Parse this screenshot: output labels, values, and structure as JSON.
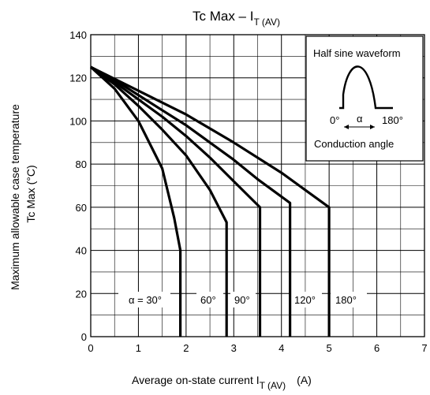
{
  "chart_data": {
    "type": "line",
    "title": {
      "main": "Tc Max – I",
      "sub": "T (AV)"
    },
    "xlabel": {
      "main": "Average on-state current   I",
      "sub": "T (AV)",
      "unit": "(A)"
    },
    "ylabel": {
      "line1": "Maximum allowable case temperature",
      "line2": "Tc Max     (°C)"
    },
    "xlim": [
      0,
      7
    ],
    "ylim": [
      0,
      140
    ],
    "x_ticks": [
      0,
      1,
      2,
      3,
      4,
      5,
      6,
      7
    ],
    "y_ticks": [
      0,
      20,
      40,
      60,
      80,
      100,
      120,
      140
    ],
    "grid": true,
    "series": [
      {
        "name": "α = 30°",
        "points": [
          [
            0,
            125
          ],
          [
            0.5,
            115
          ],
          [
            1.0,
            100
          ],
          [
            1.5,
            78
          ],
          [
            1.75,
            55
          ],
          [
            1.88,
            40
          ],
          [
            1.88,
            0
          ]
        ]
      },
      {
        "name": "60°",
        "points": [
          [
            0,
            125
          ],
          [
            0.5,
            117
          ],
          [
            1.0,
            107
          ],
          [
            1.5,
            96
          ],
          [
            2.0,
            84
          ],
          [
            2.5,
            68
          ],
          [
            2.85,
            53
          ],
          [
            2.85,
            0
          ]
        ]
      },
      {
        "name": "90°",
        "points": [
          [
            0,
            125
          ],
          [
            0.5,
            118
          ],
          [
            1.0,
            110
          ],
          [
            1.5,
            102
          ],
          [
            2.0,
            93
          ],
          [
            2.5,
            83
          ],
          [
            3.0,
            72
          ],
          [
            3.55,
            60
          ],
          [
            3.55,
            0
          ]
        ]
      },
      {
        "name": "120°",
        "points": [
          [
            0,
            125
          ],
          [
            0.5,
            119
          ],
          [
            1.0,
            112
          ],
          [
            1.5,
            105
          ],
          [
            2.0,
            98
          ],
          [
            2.5,
            90
          ],
          [
            3.0,
            82
          ],
          [
            3.5,
            73
          ],
          [
            4.18,
            62
          ],
          [
            4.18,
            0
          ]
        ]
      },
      {
        "name": "180°",
        "points": [
          [
            0,
            125
          ],
          [
            1.0,
            114
          ],
          [
            2.0,
            103
          ],
          [
            3.0,
            90
          ],
          [
            4.0,
            76
          ],
          [
            5.0,
            60
          ],
          [
            5.0,
            0
          ]
        ]
      }
    ],
    "curve_labels": [
      "α = 30°",
      "60°",
      "90°",
      "120°",
      "180°"
    ],
    "inset": {
      "title": "Half sine waveform",
      "left_angle": "0°",
      "alpha": "α",
      "right_angle": "180°",
      "caption": "Conduction angle"
    }
  }
}
